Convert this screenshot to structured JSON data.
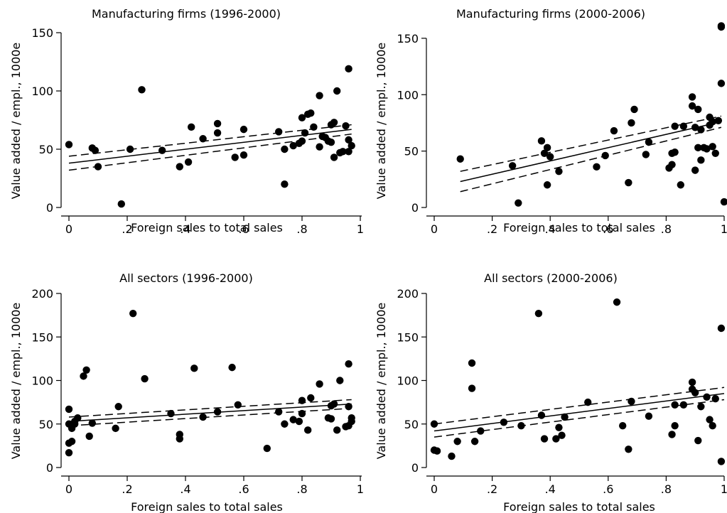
{
  "chart_data": [
    {
      "type": "scatter",
      "title": "Manufacturing firms (1996-2000)",
      "xlabel": "Foreign sales to total sales",
      "ylabel": "Value added / empl., 1000e",
      "xlim": [
        0,
        1
      ],
      "ylim": [
        0,
        150
      ],
      "xticks": [
        0,
        0.2,
        0.4,
        0.6,
        0.8,
        1
      ],
      "xtick_labels": [
        "0",
        ".2",
        ".4",
        ".6",
        ".8",
        "1"
      ],
      "yticks": [
        0,
        50,
        100,
        150
      ],
      "ytick_labels": [
        "0",
        "50",
        "100",
        "150"
      ],
      "fit": {
        "x": [
          0,
          0.97
        ],
        "y": [
          38,
          67
        ]
      },
      "ci_upper": {
        "x": [
          0,
          0.97
        ],
        "y": [
          44,
          71
        ]
      },
      "ci_lower": {
        "x": [
          0,
          0.97
        ],
        "y": [
          32,
          63
        ]
      },
      "points": [
        [
          0.0,
          54
        ],
        [
          0.08,
          51
        ],
        [
          0.09,
          49
        ],
        [
          0.1,
          35
        ],
        [
          0.18,
          3
        ],
        [
          0.21,
          50
        ],
        [
          0.25,
          101
        ],
        [
          0.32,
          49
        ],
        [
          0.38,
          35
        ],
        [
          0.41,
          39
        ],
        [
          0.42,
          69
        ],
        [
          0.46,
          59
        ],
        [
          0.51,
          72
        ],
        [
          0.51,
          64
        ],
        [
          0.57,
          43
        ],
        [
          0.6,
          45
        ],
        [
          0.6,
          67
        ],
        [
          0.72,
          65
        ],
        [
          0.74,
          50
        ],
        [
          0.74,
          20
        ],
        [
          0.77,
          53
        ],
        [
          0.79,
          55
        ],
        [
          0.8,
          77
        ],
        [
          0.8,
          57
        ],
        [
          0.81,
          64
        ],
        [
          0.82,
          80
        ],
        [
          0.83,
          81
        ],
        [
          0.84,
          69
        ],
        [
          0.86,
          52
        ],
        [
          0.86,
          96
        ],
        [
          0.87,
          61
        ],
        [
          0.88,
          60
        ],
        [
          0.89,
          57
        ],
        [
          0.9,
          71
        ],
        [
          0.9,
          56
        ],
        [
          0.91,
          73
        ],
        [
          0.91,
          43
        ],
        [
          0.92,
          100
        ],
        [
          0.93,
          47
        ],
        [
          0.94,
          48
        ],
        [
          0.95,
          70
        ],
        [
          0.96,
          119
        ],
        [
          0.96,
          58
        ],
        [
          0.96,
          48
        ],
        [
          0.97,
          53
        ]
      ]
    },
    {
      "type": "scatter",
      "title": "Manufacturing firms (2000-2006)",
      "xlabel": "Foreign sales to total sales",
      "ylabel": "Value added / empl., 1000e",
      "xlim": [
        0,
        1
      ],
      "ylim": [
        0,
        160
      ],
      "xticks": [
        0,
        0.2,
        0.4,
        0.6,
        0.8,
        1
      ],
      "xtick_labels": [
        "0",
        ".2",
        ".4",
        ".6",
        ".8",
        "1"
      ],
      "yticks": [
        0,
        50,
        100,
        150
      ],
      "ytick_labels": [
        "0",
        "50",
        "100",
        "150"
      ],
      "fit": {
        "x": [
          0.09,
          0.99
        ],
        "y": [
          23,
          76
        ]
      },
      "ci_upper": {
        "x": [
          0.09,
          0.99
        ],
        "y": [
          32,
          81
        ]
      },
      "ci_lower": {
        "x": [
          0.09,
          0.99
        ],
        "y": [
          14,
          71
        ]
      },
      "points": [
        [
          0.09,
          43
        ],
        [
          0.27,
          37
        ],
        [
          0.29,
          4
        ],
        [
          0.37,
          59
        ],
        [
          0.38,
          48
        ],
        [
          0.39,
          53
        ],
        [
          0.39,
          20
        ],
        [
          0.4,
          45
        ],
        [
          0.43,
          32
        ],
        [
          0.56,
          36
        ],
        [
          0.59,
          46
        ],
        [
          0.62,
          68
        ],
        [
          0.67,
          22
        ],
        [
          0.68,
          75
        ],
        [
          0.69,
          87
        ],
        [
          0.73,
          47
        ],
        [
          0.74,
          58
        ],
        [
          0.81,
          35
        ],
        [
          0.82,
          38
        ],
        [
          0.82,
          48
        ],
        [
          0.83,
          49
        ],
        [
          0.83,
          72
        ],
        [
          0.85,
          20
        ],
        [
          0.86,
          72
        ],
        [
          0.89,
          90
        ],
        [
          0.89,
          98
        ],
        [
          0.9,
          71
        ],
        [
          0.9,
          33
        ],
        [
          0.91,
          53
        ],
        [
          0.91,
          87
        ],
        [
          0.92,
          42
        ],
        [
          0.92,
          69
        ],
        [
          0.93,
          53
        ],
        [
          0.94,
          52
        ],
        [
          0.95,
          73
        ],
        [
          0.95,
          80
        ],
        [
          0.96,
          54
        ],
        [
          0.96,
          76
        ],
        [
          0.97,
          48
        ],
        [
          0.98,
          77
        ],
        [
          0.99,
          110
        ],
        [
          0.99,
          160
        ],
        [
          0.99,
          161
        ],
        [
          1.0,
          5
        ]
      ]
    },
    {
      "type": "scatter",
      "title": "All sectors (1996-2000)",
      "xlabel": "Foreign sales to total sales",
      "ylabel": "Value added / empl., 1000e",
      "xlim": [
        0,
        1
      ],
      "ylim": [
        0,
        200
      ],
      "xticks": [
        0,
        0.2,
        0.4,
        0.6,
        0.8,
        1
      ],
      "xtick_labels": [
        "0",
        ".2",
        ".4",
        ".6",
        ".8",
        "1"
      ],
      "yticks": [
        0,
        50,
        100,
        150,
        200
      ],
      "ytick_labels": [
        "0",
        "50",
        "100",
        "150",
        "200"
      ],
      "fit": {
        "x": [
          0,
          0.97
        ],
        "y": [
          53,
          73
        ]
      },
      "ci_upper": {
        "x": [
          0,
          0.97
        ],
        "y": [
          58,
          78
        ]
      },
      "ci_lower": {
        "x": [
          0,
          0.97
        ],
        "y": [
          48,
          68
        ]
      },
      "points": [
        [
          0.0,
          17
        ],
        [
          0.0,
          28
        ],
        [
          0.0,
          50
        ],
        [
          0.0,
          67
        ],
        [
          0.01,
          45
        ],
        [
          0.01,
          30
        ],
        [
          0.02,
          53
        ],
        [
          0.02,
          50
        ],
        [
          0.03,
          57
        ],
        [
          0.05,
          105
        ],
        [
          0.06,
          112
        ],
        [
          0.07,
          36
        ],
        [
          0.08,
          51
        ],
        [
          0.16,
          45
        ],
        [
          0.17,
          70
        ],
        [
          0.22,
          177
        ],
        [
          0.26,
          102
        ],
        [
          0.35,
          62
        ],
        [
          0.38,
          33
        ],
        [
          0.38,
          38
        ],
        [
          0.43,
          114
        ],
        [
          0.46,
          58
        ],
        [
          0.51,
          64
        ],
        [
          0.56,
          115
        ],
        [
          0.58,
          72
        ],
        [
          0.68,
          22
        ],
        [
          0.72,
          64
        ],
        [
          0.74,
          50
        ],
        [
          0.77,
          55
        ],
        [
          0.79,
          53
        ],
        [
          0.8,
          62
        ],
        [
          0.8,
          77
        ],
        [
          0.82,
          43
        ],
        [
          0.83,
          80
        ],
        [
          0.86,
          96
        ],
        [
          0.89,
          57
        ],
        [
          0.9,
          71
        ],
        [
          0.9,
          56
        ],
        [
          0.91,
          73
        ],
        [
          0.92,
          43
        ],
        [
          0.93,
          100
        ],
        [
          0.95,
          47
        ],
        [
          0.96,
          70
        ],
        [
          0.96,
          48
        ],
        [
          0.96,
          119
        ],
        [
          0.97,
          57
        ],
        [
          0.97,
          53
        ]
      ]
    },
    {
      "type": "scatter",
      "title": "All sectors (2000-2006)",
      "xlabel": "Foreign sales to total sales",
      "ylabel": "Value added / empl., 1000e",
      "xlim": [
        0,
        1
      ],
      "ylim": [
        0,
        200
      ],
      "xticks": [
        0,
        0.2,
        0.4,
        0.6,
        0.8,
        1
      ],
      "xtick_labels": [
        "0",
        ".2",
        ".4",
        ".6",
        ".8",
        "1"
      ],
      "yticks": [
        0,
        50,
        100,
        150,
        200
      ],
      "ytick_labels": [
        "0",
        "50",
        "100",
        "150",
        "200"
      ],
      "fit": {
        "x": [
          0,
          1
        ],
        "y": [
          42,
          85
        ]
      },
      "ci_upper": {
        "x": [
          0,
          1
        ],
        "y": [
          50,
          92
        ]
      },
      "ci_lower": {
        "x": [
          0,
          1
        ],
        "y": [
          35,
          78
        ]
      },
      "points": [
        [
          0.0,
          50
        ],
        [
          0.0,
          20
        ],
        [
          0.01,
          19
        ],
        [
          0.06,
          13
        ],
        [
          0.08,
          30
        ],
        [
          0.13,
          120
        ],
        [
          0.13,
          91
        ],
        [
          0.14,
          30
        ],
        [
          0.16,
          42
        ],
        [
          0.24,
          52
        ],
        [
          0.3,
          48
        ],
        [
          0.36,
          177
        ],
        [
          0.37,
          60
        ],
        [
          0.38,
          33
        ],
        [
          0.42,
          33
        ],
        [
          0.43,
          46
        ],
        [
          0.44,
          37
        ],
        [
          0.45,
          58
        ],
        [
          0.53,
          75
        ],
        [
          0.63,
          190
        ],
        [
          0.65,
          48
        ],
        [
          0.67,
          21
        ],
        [
          0.68,
          76
        ],
        [
          0.74,
          59
        ],
        [
          0.82,
          38
        ],
        [
          0.83,
          72
        ],
        [
          0.83,
          48
        ],
        [
          0.86,
          72
        ],
        [
          0.89,
          98
        ],
        [
          0.89,
          90
        ],
        [
          0.9,
          86
        ],
        [
          0.91,
          31
        ],
        [
          0.92,
          70
        ],
        [
          0.94,
          81
        ],
        [
          0.95,
          55
        ],
        [
          0.96,
          48
        ],
        [
          0.97,
          79
        ],
        [
          0.99,
          160
        ],
        [
          0.99,
          7
        ]
      ]
    }
  ]
}
